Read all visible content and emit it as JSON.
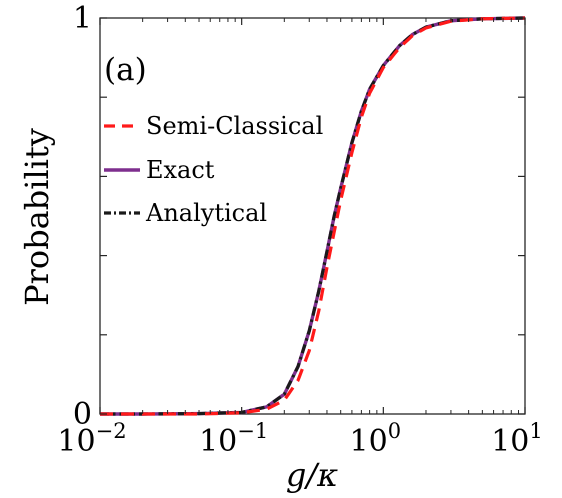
{
  "chart_data": {
    "type": "line",
    "panel_label": "(a)",
    "xlabel": "g/κ",
    "ylabel": "Probability",
    "xscale": "log",
    "xlim": [
      0.01,
      10
    ],
    "ylim": [
      0,
      1
    ],
    "x_ticks": [
      {
        "value": 0.01,
        "base": "10",
        "exp": "−2"
      },
      {
        "value": 0.1,
        "base": "10",
        "exp": "−1"
      },
      {
        "value": 1,
        "base": "10",
        "exp": "0"
      },
      {
        "value": 10,
        "base": "10",
        "exp": "1"
      }
    ],
    "y_ticks": [
      {
        "value": 0,
        "label": "0"
      },
      {
        "value": 1,
        "label": "1"
      }
    ],
    "legend_position": "left",
    "x": [
      0.01,
      0.02,
      0.05,
      0.1,
      0.15,
      0.2,
      0.25,
      0.3,
      0.35,
      0.4,
      0.45,
      0.5,
      0.6,
      0.7,
      0.8,
      1.0,
      1.3,
      1.6,
      2.0,
      3.0,
      5.0,
      10.0
    ],
    "series": [
      {
        "name": "Semi-Classical",
        "color": "#ff1a1a",
        "style": "dashed",
        "values": [
          0.0,
          0.0,
          0.0,
          0.003,
          0.012,
          0.035,
          0.085,
          0.16,
          0.26,
          0.37,
          0.46,
          0.54,
          0.66,
          0.75,
          0.81,
          0.875,
          0.925,
          0.955,
          0.975,
          0.992,
          0.998,
          1.0
        ]
      },
      {
        "name": "Exact",
        "color": "#7e2f8e",
        "style": "solid",
        "values": [
          0.0,
          0.0,
          0.001,
          0.004,
          0.018,
          0.05,
          0.12,
          0.21,
          0.31,
          0.41,
          0.5,
          0.57,
          0.685,
          0.765,
          0.82,
          0.88,
          0.93,
          0.958,
          0.977,
          0.993,
          0.998,
          1.0
        ]
      },
      {
        "name": "Analytical",
        "color": "#1a1a1a",
        "style": "dashdot",
        "values": [
          0.0,
          0.0,
          0.001,
          0.004,
          0.018,
          0.05,
          0.12,
          0.21,
          0.31,
          0.41,
          0.5,
          0.57,
          0.685,
          0.765,
          0.82,
          0.88,
          0.93,
          0.958,
          0.977,
          0.993,
          0.998,
          1.0
        ]
      }
    ]
  }
}
